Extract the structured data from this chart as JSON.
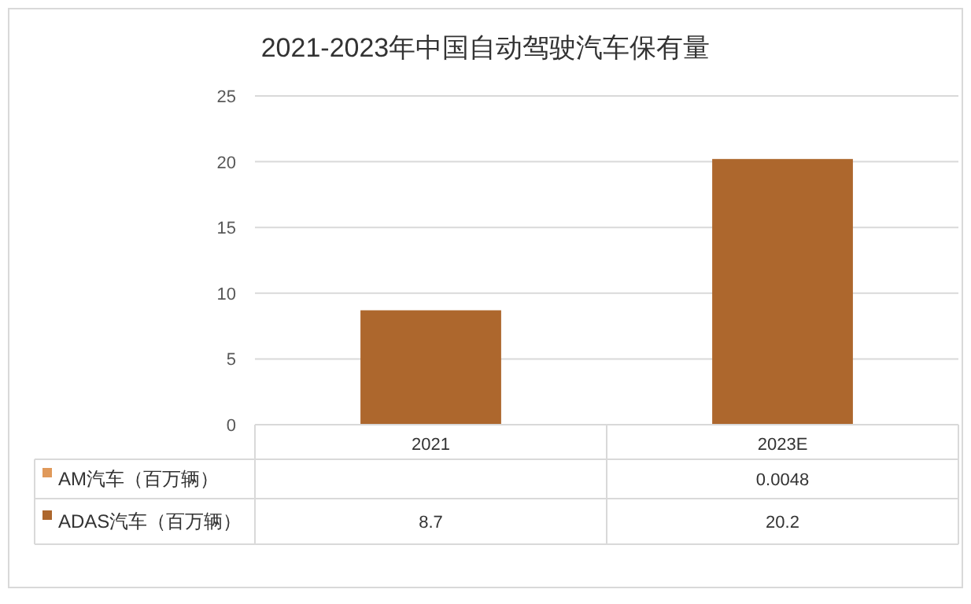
{
  "chart_data": {
    "type": "bar",
    "title": "2021-2023年中国自动驾驶汽车保有量",
    "categories": [
      "2021",
      "2023E"
    ],
    "stacked": true,
    "series": [
      {
        "name": "AM汽车（百万辆）",
        "color": "#e0995a",
        "values": [
          null,
          0.0048
        ],
        "value_labels": [
          null,
          "0.0048"
        ]
      },
      {
        "name": "ADAS汽车（百万辆）",
        "color": "#ad672d",
        "values": [
          8.7,
          20.2
        ],
        "value_labels": [
          "8.7",
          "20.2"
        ]
      }
    ],
    "ylim": [
      0,
      25
    ],
    "yticks": [
      0,
      5,
      10,
      15,
      20,
      25
    ],
    "grid": "y",
    "legend": "bottom"
  }
}
